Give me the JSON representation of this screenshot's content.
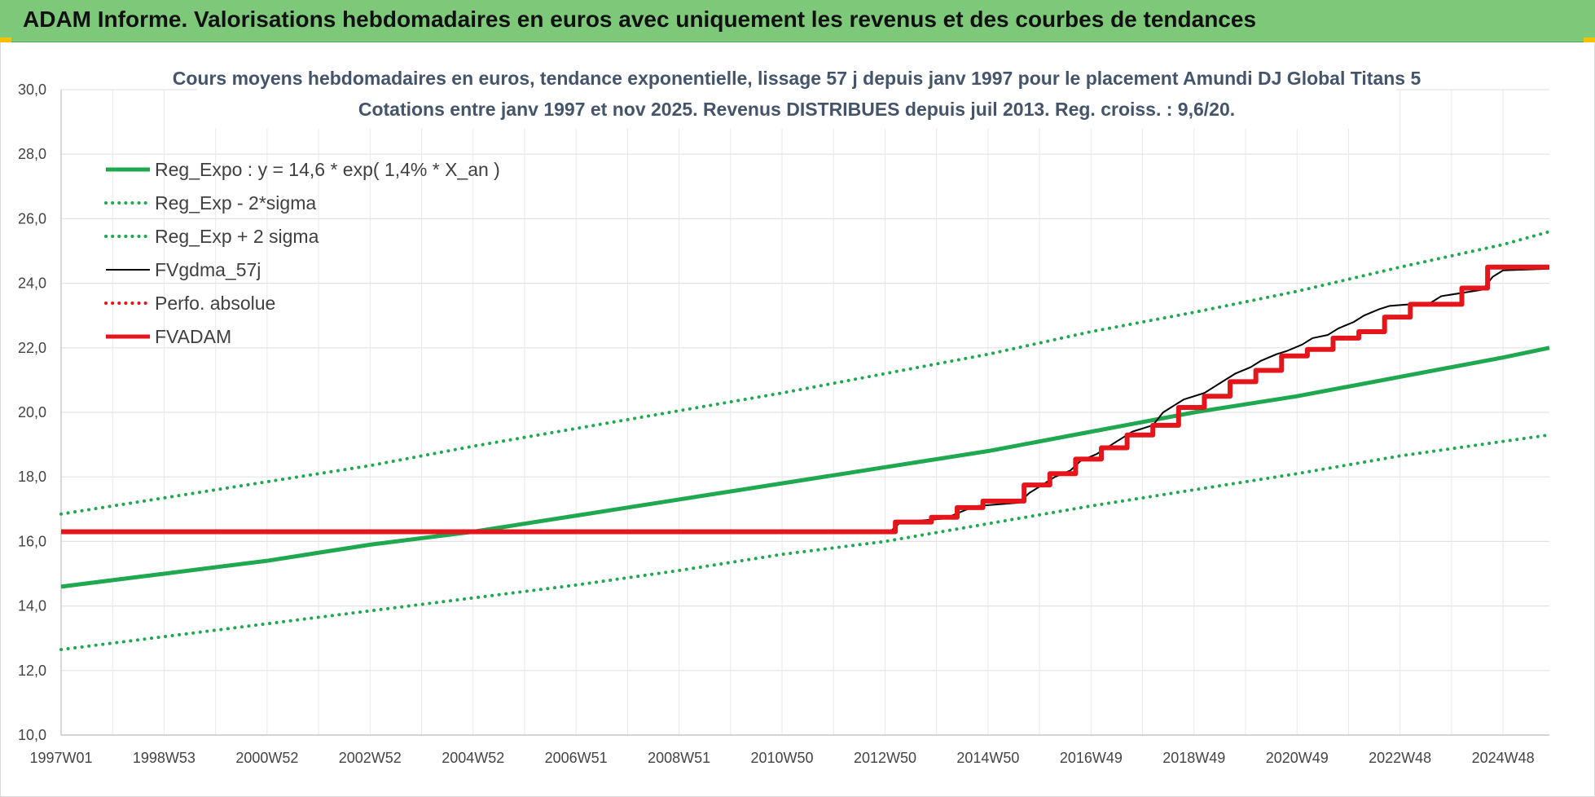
{
  "banner": {
    "title": "ADAM Informe. Valorisations hebdomadaires en euros avec uniquement les revenus et des courbes de tendances"
  },
  "chart_data": {
    "type": "line",
    "title": "Cours moyens hebdomadaires en euros, tendance exponentielle, lissage 57 j depuis janv 1997 pour le placement Amundi DJ Global Titans 5",
    "subtitle": "Cotations entre janv 1997 et nov 2025. Revenus DISTRIBUES depuis juil 2013. Reg. croiss. : 9,6/20.",
    "xlabel": "",
    "ylabel": "",
    "x_range": [
      1997.0,
      2025.9
    ],
    "ylim": [
      10,
      30
    ],
    "y_ticks": [
      "10,0",
      "12,0",
      "14,0",
      "16,0",
      "18,0",
      "20,0",
      "22,0",
      "24,0",
      "26,0",
      "28,0",
      "30,0"
    ],
    "x_ticks": [
      {
        "label": "1997W01",
        "x": 1997.0
      },
      {
        "label": "1998W53",
        "x": 1999.0
      },
      {
        "label": "2000W52",
        "x": 2001.0
      },
      {
        "label": "2002W52",
        "x": 2003.0
      },
      {
        "label": "2004W52",
        "x": 2005.0
      },
      {
        "label": "2006W51",
        "x": 2007.0
      },
      {
        "label": "2008W51",
        "x": 2009.0
      },
      {
        "label": "2010W50",
        "x": 2011.0
      },
      {
        "label": "2012W50",
        "x": 2013.0
      },
      {
        "label": "2014W50",
        "x": 2015.0
      },
      {
        "label": "2016W49",
        "x": 2017.0
      },
      {
        "label": "2018W49",
        "x": 2019.0
      },
      {
        "label": "2020W49",
        "x": 2021.0
      },
      {
        "label": "2022W48",
        "x": 2023.0
      },
      {
        "label": "2024W48",
        "x": 2025.0
      }
    ],
    "grid": true,
    "legend_position": "top-left",
    "series": [
      {
        "name": "Reg_Expo : y = 14,6 * exp( 1,4% *  X_an )",
        "color": "#1fa84f",
        "style": "solid",
        "width": 5,
        "x": [
          1997.0,
          1999.0,
          2001.0,
          2003.0,
          2005.0,
          2007.0,
          2009.0,
          2011.0,
          2013.0,
          2015.0,
          2017.0,
          2019.0,
          2021.0,
          2023.0,
          2025.0,
          2025.9
        ],
        "y": [
          14.6,
          15.0,
          15.4,
          15.9,
          16.3,
          16.8,
          17.3,
          17.8,
          18.3,
          18.8,
          19.4,
          20.0,
          20.5,
          21.1,
          21.7,
          22.0
        ]
      },
      {
        "name": "Reg_Exp - 2*sigma",
        "color": "#1fa84f",
        "style": "dotted",
        "width": 4,
        "x": [
          1997.0,
          1999.0,
          2001.0,
          2003.0,
          2005.0,
          2007.0,
          2009.0,
          2011.0,
          2013.0,
          2015.0,
          2017.0,
          2019.0,
          2021.0,
          2023.0,
          2025.0,
          2025.9
        ],
        "y": [
          12.65,
          13.05,
          13.45,
          13.85,
          14.25,
          14.65,
          15.1,
          15.6,
          16.0,
          16.55,
          17.1,
          17.6,
          18.1,
          18.65,
          19.1,
          19.3
        ]
      },
      {
        "name": "Reg_Exp + 2 sigma",
        "color": "#1fa84f",
        "style": "dotted",
        "width": 4,
        "x": [
          1997.0,
          1999.0,
          2001.0,
          2003.0,
          2005.0,
          2007.0,
          2009.0,
          2011.0,
          2013.0,
          2015.0,
          2017.0,
          2019.0,
          2021.0,
          2023.0,
          2025.0,
          2025.9
        ],
        "y": [
          16.85,
          17.35,
          17.85,
          18.35,
          18.95,
          19.5,
          20.05,
          20.6,
          21.2,
          21.8,
          22.5,
          23.1,
          23.75,
          24.5,
          25.2,
          25.6
        ]
      },
      {
        "name": "FVgdma_57j",
        "color": "#000000",
        "style": "solid",
        "width": 2,
        "x": [
          1997.0,
          2013.1,
          2013.3,
          2014.1,
          2014.3,
          2014.6,
          2014.8,
          2015.6,
          2015.8,
          2016.1,
          2016.3,
          2016.6,
          2016.8,
          2017.1,
          2017.3,
          2017.6,
          2017.8,
          2018.2,
          2018.4,
          2018.6,
          2018.8,
          2019.2,
          2019.4,
          2019.6,
          2019.8,
          2020.1,
          2020.3,
          2020.6,
          2020.8,
          2021.1,
          2021.3,
          2021.6,
          2021.8,
          2022.1,
          2022.3,
          2022.6,
          2022.8,
          2023.6,
          2023.8,
          2024.6,
          2024.8,
          2025.0,
          2025.9
        ],
        "y": [
          16.3,
          16.3,
          16.6,
          16.7,
          16.8,
          17.0,
          17.1,
          17.2,
          17.5,
          17.8,
          18.0,
          18.2,
          18.5,
          18.7,
          18.9,
          19.2,
          19.4,
          19.6,
          20.0,
          20.2,
          20.4,
          20.6,
          20.8,
          21.0,
          21.2,
          21.4,
          21.6,
          21.8,
          21.9,
          22.1,
          22.3,
          22.4,
          22.6,
          22.8,
          23.0,
          23.2,
          23.3,
          23.4,
          23.6,
          23.8,
          24.2,
          24.4,
          24.45
        ]
      },
      {
        "name": "Perfo. absolue",
        "color": "#e4151b",
        "style": "dotted",
        "width": 3,
        "x": [],
        "y": []
      },
      {
        "name": "FVADAM",
        "color": "#e4151b",
        "style": "step",
        "width": 6,
        "x": [
          1997.0,
          2013.2,
          2013.9,
          2014.4,
          2014.9,
          2015.7,
          2016.2,
          2016.7,
          2017.2,
          2017.7,
          2018.2,
          2018.7,
          2019.2,
          2019.7,
          2020.2,
          2020.7,
          2021.2,
          2021.7,
          2022.2,
          2022.7,
          2023.2,
          2024.2,
          2024.7,
          2025.9
        ],
        "y": [
          16.3,
          16.6,
          16.75,
          17.05,
          17.25,
          17.75,
          18.1,
          18.55,
          18.9,
          19.3,
          19.6,
          20.15,
          20.5,
          20.95,
          21.3,
          21.75,
          21.95,
          22.3,
          22.5,
          22.95,
          23.35,
          23.85,
          24.5,
          24.5
        ]
      }
    ]
  }
}
